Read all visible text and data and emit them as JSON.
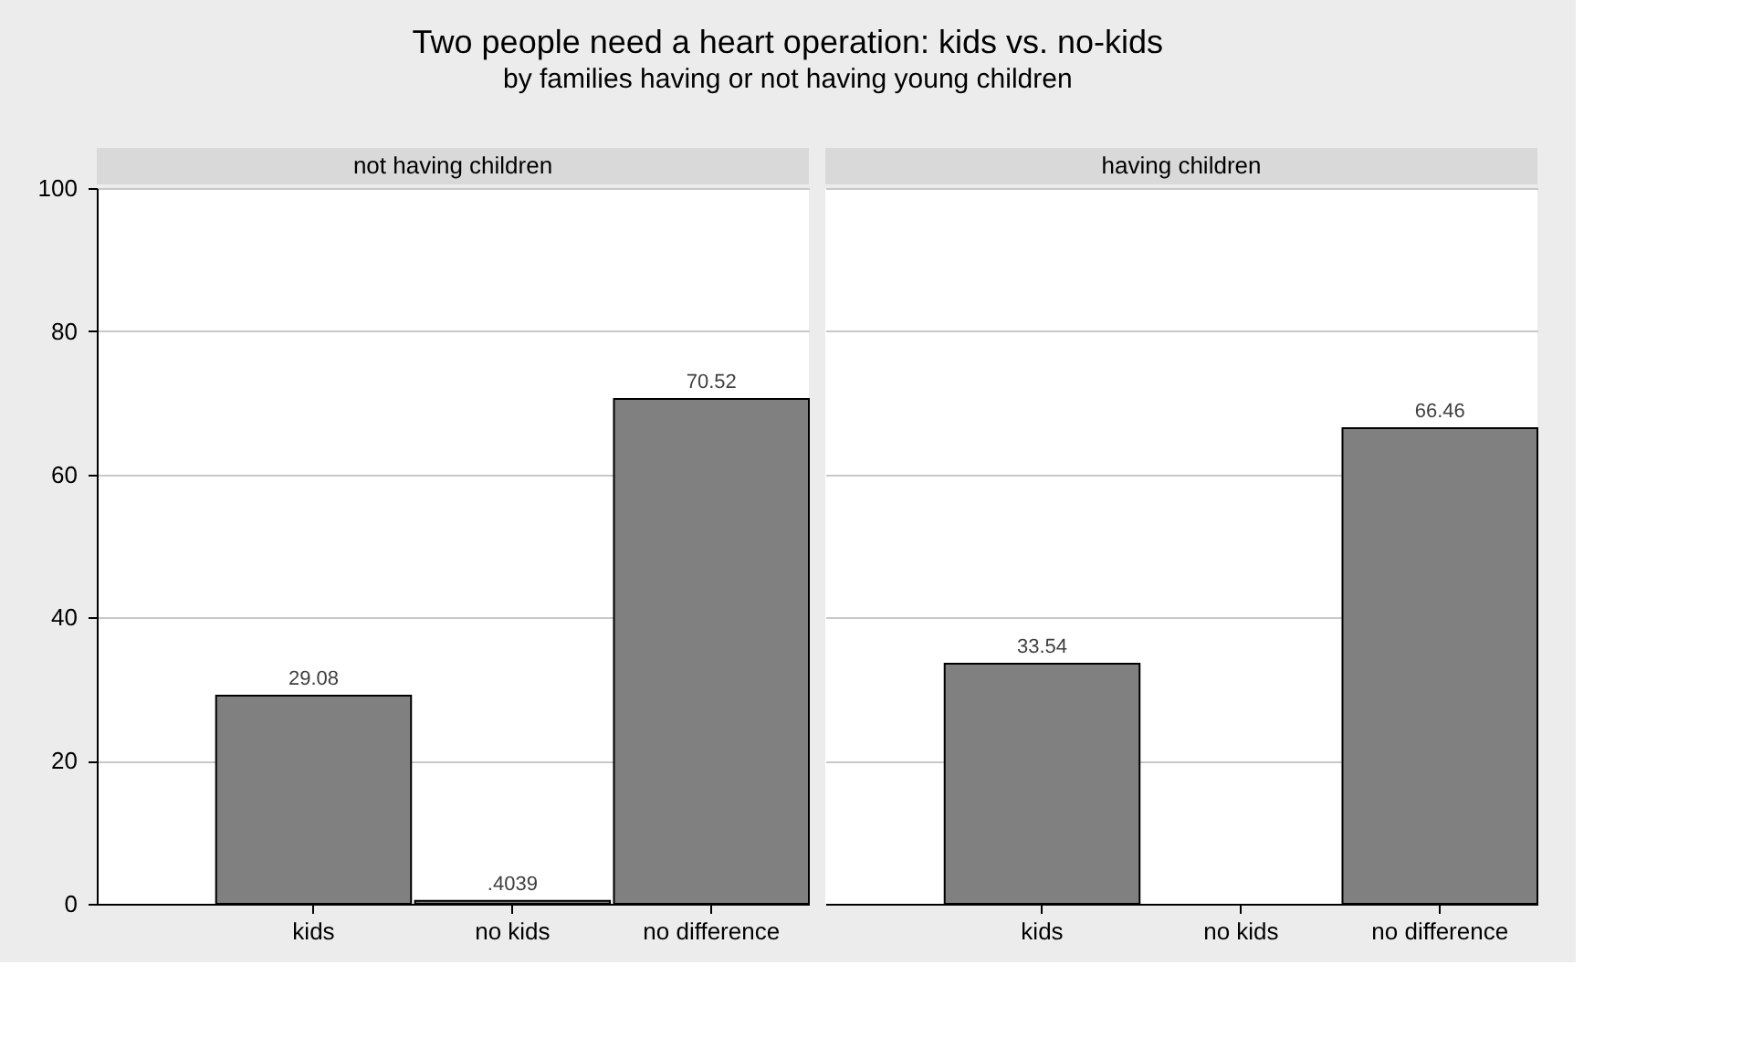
{
  "chart_data": [
    {
      "type": "bar",
      "title": "not having children",
      "annotations": [
        "Two people need a heart operation: kids vs. no-kids",
        "by families having or not having young children"
      ],
      "categories": [
        "kids",
        "no kids",
        "no difference"
      ],
      "values": [
        29.08,
        0.4039,
        70.52
      ],
      "value_labels": [
        "29.08",
        ".4039",
        "70.52"
      ],
      "color": "#808080",
      "ylim": [
        0,
        100
      ],
      "yticks": [
        0,
        20,
        40,
        60,
        80,
        100
      ],
      "grid": "y"
    },
    {
      "type": "bar",
      "title": "having children",
      "categories": [
        "kids",
        "no kids",
        "no difference"
      ],
      "values": [
        33.54,
        null,
        66.46
      ],
      "value_labels": [
        "33.54",
        null,
        "66.46"
      ],
      "color": "#808080",
      "ylim": [
        0,
        100
      ],
      "yticks": [
        0,
        20,
        40,
        60,
        80,
        100
      ],
      "grid": "y",
      "tick_labels": "x"
    }
  ]
}
